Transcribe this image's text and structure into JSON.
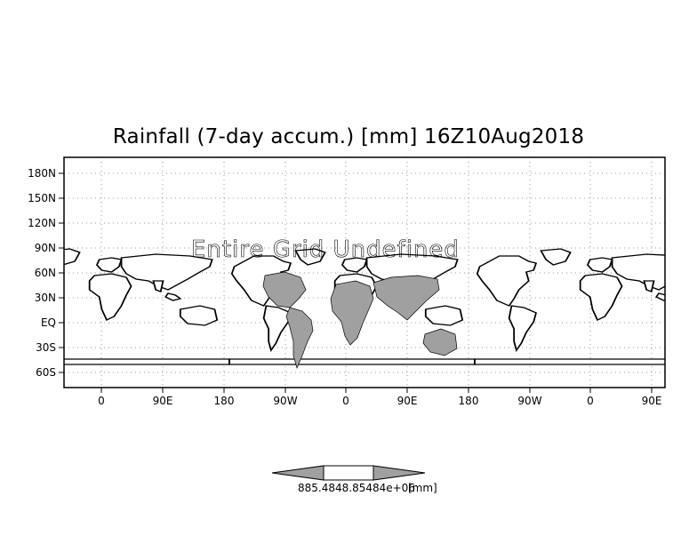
{
  "title": "Rainfall (7-day accum.) [mm] 16Z10Aug2018",
  "overlay_message": "Entire Grid Undefined",
  "map": {
    "y_labels": [
      "180N",
      "150N",
      "120N",
      "90N",
      "60N",
      "30N",
      "EQ",
      "30S",
      "60S"
    ],
    "x_labels": [
      "0",
      "90E",
      "180",
      "90W",
      "0",
      "90E",
      "180",
      "90W",
      "0",
      "90E"
    ],
    "land_color": "#ffffff",
    "shaded_color": "#a0a0a0",
    "coast_color": "#000000",
    "grid": "dotted"
  },
  "colorbar": {
    "label": "885.4848.85484e+06",
    "units": "[mm]",
    "colors": [
      "#a0a0a0",
      "#ffffff",
      "#a0a0a0"
    ]
  }
}
